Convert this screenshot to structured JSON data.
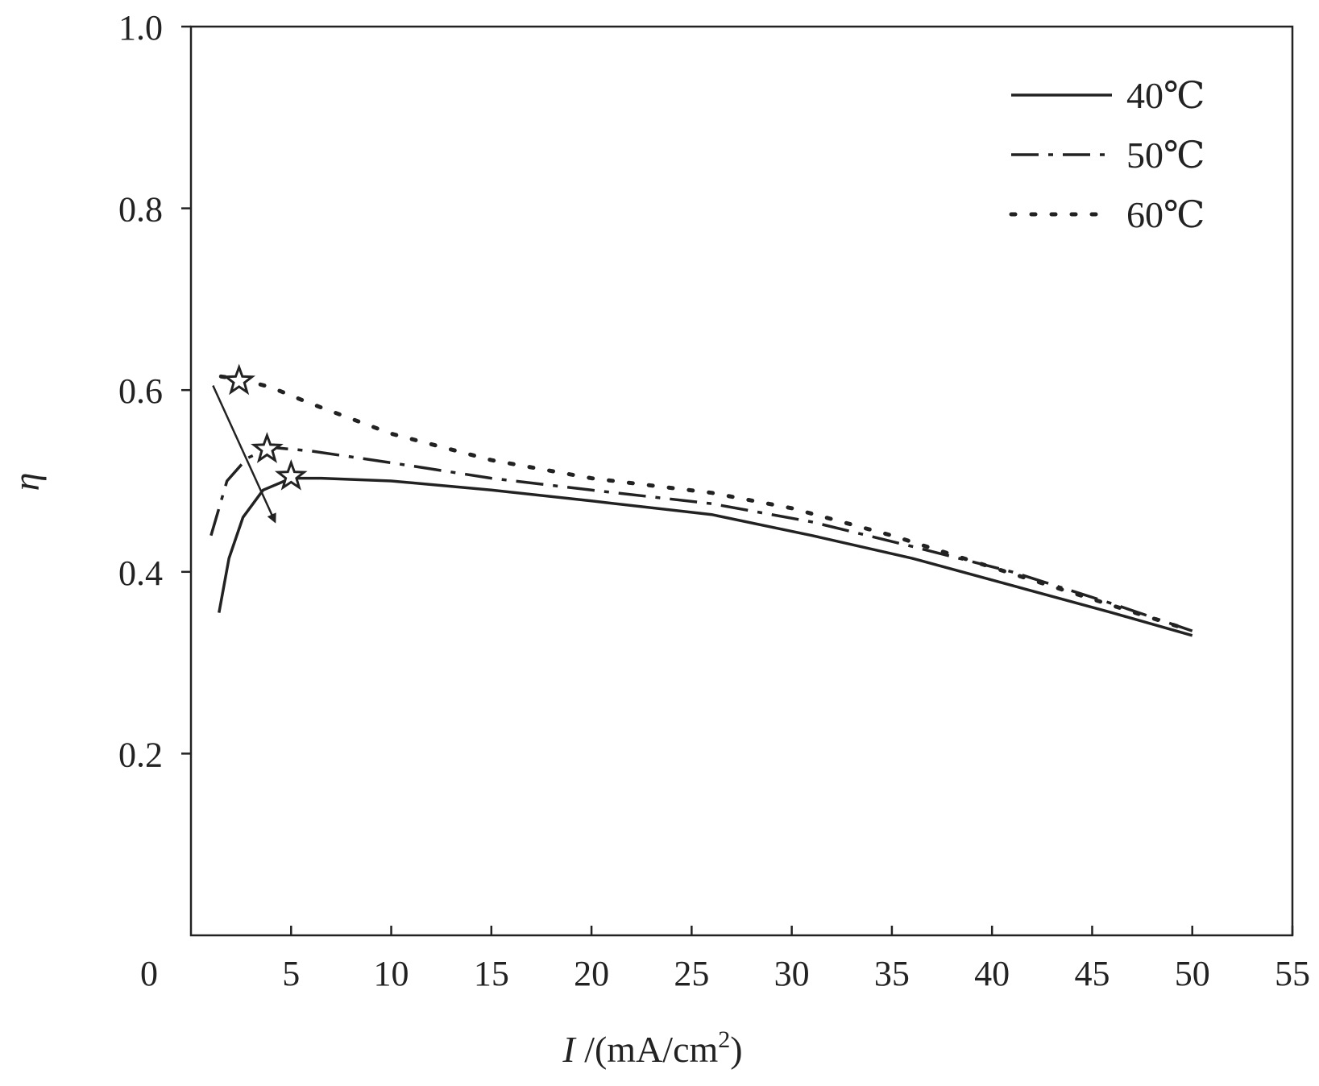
{
  "chart_data": {
    "type": "line",
    "title": "",
    "xlabel_italic": "I",
    "xlabel_rest": " /(mA/cm",
    "xlabel_sup": "2",
    "xlabel_close": ")",
    "ylabel": "η",
    "xlim": [
      0,
      55
    ],
    "ylim": [
      0,
      1.0
    ],
    "x_ticks": [
      5,
      10,
      15,
      20,
      25,
      30,
      35,
      40,
      45,
      50,
      55
    ],
    "x_tick_labels": [
      "5",
      "10",
      "15",
      "20",
      "25",
      "30",
      "35",
      "40",
      "45",
      "50",
      "55"
    ],
    "origin_label": "0",
    "y_ticks": [
      0.2,
      0.4,
      0.6,
      0.8,
      1.0
    ],
    "y_tick_labels": [
      "0.2",
      "0.4",
      "0.6",
      "0.8",
      "1.0"
    ],
    "legend_position": "top-right",
    "series": [
      {
        "name": "40℃",
        "style": "solid",
        "color": "#222222",
        "x": [
          1.4,
          1.9,
          2.6,
          3.6,
          5.0,
          6.5,
          10,
          15,
          20,
          26,
          31,
          36,
          41,
          46,
          50
        ],
        "y": [
          0.355,
          0.415,
          0.46,
          0.49,
          0.503,
          0.503,
          0.5,
          0.49,
          0.478,
          0.463,
          0.44,
          0.415,
          0.385,
          0.355,
          0.33
        ]
      },
      {
        "name": "50℃",
        "style": "dashdot",
        "color": "#222222",
        "x": [
          1.0,
          1.8,
          2.8,
          4.0,
          6.0,
          10,
          15,
          20,
          26,
          31,
          36,
          41,
          46,
          50
        ],
        "y": [
          0.44,
          0.5,
          0.525,
          0.537,
          0.533,
          0.52,
          0.503,
          0.49,
          0.475,
          0.455,
          0.428,
          0.4,
          0.365,
          0.335
        ]
      },
      {
        "name": "60℃",
        "style": "dotted",
        "color": "#222222",
        "x": [
          1.5,
          2.5,
          4.0,
          6.0,
          10,
          15,
          20,
          26,
          30,
          35,
          40,
          45,
          50
        ],
        "y": [
          0.615,
          0.612,
          0.603,
          0.585,
          0.552,
          0.523,
          0.503,
          0.487,
          0.47,
          0.44,
          0.405,
          0.37,
          0.335
        ]
      }
    ],
    "peak_markers": [
      {
        "series": "40℃",
        "x": 5.0,
        "y": 0.505
      },
      {
        "series": "50℃",
        "x": 3.8,
        "y": 0.535
      },
      {
        "series": "60℃",
        "x": 2.4,
        "y": 0.61
      }
    ],
    "trend_arrow": {
      "from": [
        1.1,
        0.605
      ],
      "to": [
        4.2,
        0.455
      ]
    }
  }
}
